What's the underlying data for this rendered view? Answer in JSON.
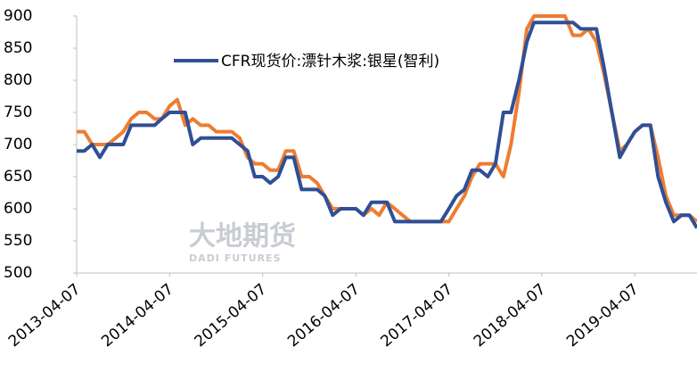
{
  "chart_data": {
    "type": "line",
    "watermark": {
      "name": "大地期货",
      "subtitle": "DADI FUTURES"
    },
    "x": [
      "2013-04-07",
      "2013-05-07",
      "2013-06-07",
      "2013-07-07",
      "2013-08-07",
      "2013-09-07",
      "2013-10-07",
      "2013-11-07",
      "2013-12-07",
      "2014-01-07",
      "2014-02-07",
      "2014-03-07",
      "2014-04-07",
      "2014-05-07",
      "2014-06-07",
      "2014-07-07",
      "2014-08-07",
      "2014-09-07",
      "2014-10-07",
      "2014-11-07",
      "2014-12-07",
      "2015-01-07",
      "2015-02-07",
      "2015-03-07",
      "2015-04-07",
      "2015-05-07",
      "2015-06-07",
      "2015-07-07",
      "2015-08-07",
      "2015-09-07",
      "2015-10-07",
      "2015-11-07",
      "2015-12-07",
      "2016-01-07",
      "2016-02-07",
      "2016-03-07",
      "2016-04-07",
      "2016-05-07",
      "2016-06-07",
      "2016-07-07",
      "2016-08-07",
      "2016-09-07",
      "2016-10-07",
      "2016-11-07",
      "2016-12-07",
      "2017-01-07",
      "2017-02-07",
      "2017-03-07",
      "2017-04-07",
      "2017-05-07",
      "2017-06-07",
      "2017-07-07",
      "2017-08-07",
      "2017-09-07",
      "2017-10-07",
      "2017-11-07",
      "2017-12-07",
      "2018-01-07",
      "2018-02-07",
      "2018-03-07",
      "2018-04-07",
      "2018-05-07",
      "2018-06-07",
      "2018-07-07",
      "2018-08-07",
      "2018-09-07",
      "2018-10-07",
      "2018-11-07",
      "2018-12-07",
      "2019-01-07",
      "2019-02-07",
      "2019-03-07",
      "2019-04-07",
      "2019-05-07",
      "2019-06-07",
      "2019-07-07",
      "2019-08-07",
      "2019-09-07",
      "2019-10-07",
      "2019-11-07",
      "2019-12-07"
    ],
    "series": [
      {
        "color": "#ed7d31",
        "values": [
          720,
          720,
          700,
          700,
          700,
          710,
          720,
          740,
          750,
          750,
          740,
          740,
          760,
          770,
          730,
          740,
          730,
          730,
          720,
          720,
          720,
          710,
          680,
          670,
          670,
          660,
          660,
          690,
          690,
          650,
          650,
          640,
          620,
          600,
          600,
          600,
          600,
          590,
          600,
          590,
          610,
          600,
          590,
          580,
          580,
          580,
          580,
          580,
          580,
          600,
          620,
          650,
          670,
          670,
          670,
          650,
          700,
          780,
          880,
          900,
          900,
          900,
          900,
          900,
          870,
          870,
          880,
          860,
          810,
          750,
          690,
          700,
          720,
          730,
          730,
          680,
          620,
          590,
          590,
          590,
          580
        ]
      },
      {
        "name": "CFR现货价:漂针木浆:银星(智利)",
        "color": "#2f4f96",
        "values": [
          690,
          690,
          700,
          680,
          700,
          700,
          700,
          730,
          730,
          730,
          730,
          740,
          750,
          750,
          750,
          700,
          710,
          710,
          710,
          710,
          710,
          700,
          690,
          650,
          650,
          640,
          650,
          680,
          680,
          630,
          630,
          630,
          620,
          590,
          600,
          600,
          600,
          590,
          610,
          610,
          610,
          580,
          580,
          580,
          580,
          580,
          580,
          580,
          600,
          620,
          630,
          660,
          660,
          650,
          670,
          750,
          750,
          800,
          860,
          890,
          890,
          890,
          890,
          890,
          890,
          880,
          880,
          880,
          820,
          750,
          680,
          700,
          720,
          730,
          730,
          650,
          610,
          580,
          590,
          590,
          570
        ]
      }
    ],
    "xlim": [
      "2013-04-07",
      "2019-12-07"
    ],
    "xticks": [
      "2013-04-07",
      "2014-04-07",
      "2015-04-07",
      "2016-04-07",
      "2017-04-07",
      "2018-04-07",
      "2019-04-07"
    ],
    "ylim": [
      500,
      900
    ],
    "yticks": [
      500,
      550,
      600,
      650,
      700,
      750,
      800,
      850,
      900
    ]
  }
}
